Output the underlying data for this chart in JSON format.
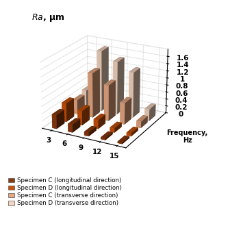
{
  "frequencies": [
    3,
    6,
    9,
    12,
    15
  ],
  "series_labels": [
    "Specimen C (longitudinal direction)",
    "Specimen D (longitudinal direction)",
    "Specimen C (transverse direction)",
    "Specimen D (transverse direction)"
  ],
  "values": [
    [
      0.38,
      0.22,
      0.1,
      0.05,
      0.04
    ],
    [
      0.52,
      0.4,
      0.25,
      0.12,
      0.08
    ],
    [
      0.4,
      1.25,
      1.0,
      0.6,
      0.18
    ],
    [
      0.5,
      1.7,
      1.48,
      1.27,
      0.33
    ]
  ],
  "colors": [
    "#8B3A0F",
    "#C8520A",
    "#E8A882",
    "#F5D5C0"
  ],
  "ylim": [
    0,
    1.8
  ],
  "yticks": [
    0,
    0.2,
    0.4,
    0.6,
    0.8,
    1.0,
    1.2,
    1.4,
    1.6
  ],
  "ytick_labels": [
    "0",
    "0.2",
    "0.4",
    "0.6",
    "0.8",
    "1",
    "1.2",
    "1.4",
    "1.6"
  ],
  "elev": 22,
  "azim": -62
}
